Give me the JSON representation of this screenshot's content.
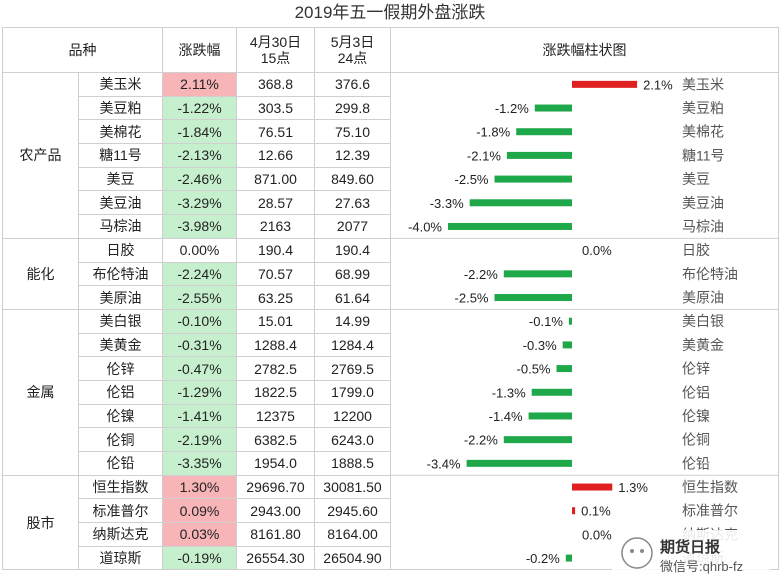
{
  "title": "2019年五一假期外盘涨跌",
  "headers": {
    "product": "品种",
    "change": "涨跌幅",
    "p1_line1": "4月30日",
    "p1_line2": "15点",
    "p2_line1": "5月3日",
    "p2_line2": "24点",
    "chart": "涨跌幅柱状图"
  },
  "colors": {
    "up_bar": "#e02020",
    "down_bar": "#1fa84a",
    "up_cell": "#f7b5b8",
    "down_cell": "#c6efce"
  },
  "groups": [
    {
      "category": "农产品",
      "rows": [
        {
          "name": "美玉米",
          "change": "2.11%",
          "p1": "368.8",
          "p2": "376.6"
        },
        {
          "name": "美豆粕",
          "change": "-1.22%",
          "p1": "303.5",
          "p2": "299.8"
        },
        {
          "name": "美棉花",
          "change": "-1.84%",
          "p1": "76.51",
          "p2": "75.10"
        },
        {
          "name": "糖11号",
          "change": "-2.13%",
          "p1": "12.66",
          "p2": "12.39"
        },
        {
          "name": "美豆",
          "change": "-2.46%",
          "p1": "871.00",
          "p2": "849.60"
        },
        {
          "name": "美豆油",
          "change": "-3.29%",
          "p1": "28.57",
          "p2": "27.63"
        },
        {
          "name": "马棕油",
          "change": "-3.98%",
          "p1": "2163",
          "p2": "2077"
        }
      ]
    },
    {
      "category": "能化",
      "rows": [
        {
          "name": "日胶",
          "change": "0.00%",
          "p1": "190.4",
          "p2": "190.4"
        },
        {
          "name": "布伦特油",
          "change": "-2.24%",
          "p1": "70.57",
          "p2": "68.99"
        },
        {
          "name": "美原油",
          "change": "-2.55%",
          "p1": "63.25",
          "p2": "61.64"
        }
      ]
    },
    {
      "category": "金属",
      "rows": [
        {
          "name": "美白银",
          "change": "-0.10%",
          "p1": "15.01",
          "p2": "14.99"
        },
        {
          "name": "美黄金",
          "change": "-0.31%",
          "p1": "1288.4",
          "p2": "1284.4"
        },
        {
          "name": "伦锌",
          "change": "-0.47%",
          "p1": "2782.5",
          "p2": "2769.5"
        },
        {
          "name": "伦铝",
          "change": "-1.29%",
          "p1": "1822.5",
          "p2": "1799.0"
        },
        {
          "name": "伦镍",
          "change": "-1.41%",
          "p1": "12375",
          "p2": "12200"
        },
        {
          "name": "伦铜",
          "change": "-2.19%",
          "p1": "6382.5",
          "p2": "6243.0"
        },
        {
          "name": "伦铅",
          "change": "-3.35%",
          "p1": "1954.0",
          "p2": "1888.5"
        }
      ]
    },
    {
      "category": "股市",
      "rows": [
        {
          "name": "恒生指数",
          "change": "1.30%",
          "p1": "29696.70",
          "p2": "30081.50"
        },
        {
          "name": "标准普尔",
          "change": "0.09%",
          "p1": "2943.00",
          "p2": "2945.60"
        },
        {
          "name": "纳斯达克",
          "change": "0.03%",
          "p1": "8161.80",
          "p2": "8164.00"
        },
        {
          "name": "道琼斯",
          "change": "-0.19%",
          "p1": "26554.30",
          "p2": "26504.90"
        }
      ]
    }
  ],
  "chart_data": {
    "type": "bar",
    "orientation": "horizontal",
    "title": "涨跌幅柱状图",
    "categories": [
      "美玉米",
      "美豆粕",
      "美棉花",
      "糖11号",
      "美豆",
      "美豆油",
      "马棕油",
      "日胶",
      "布伦特油",
      "美原油",
      "美白银",
      "美黄金",
      "伦锌",
      "伦铝",
      "伦镍",
      "伦铜",
      "伦铅",
      "恒生指数",
      "标准普尔",
      "纳斯达克",
      "道琼斯"
    ],
    "values": [
      2.1,
      -1.2,
      -1.8,
      -2.1,
      -2.5,
      -3.3,
      -4.0,
      0.0,
      -2.2,
      -2.5,
      -0.1,
      -0.3,
      -0.5,
      -1.3,
      -1.4,
      -2.2,
      -3.4,
      1.3,
      0.1,
      0.0,
      -0.2
    ],
    "labels": [
      "2.1%",
      "-1.2%",
      "-1.8%",
      "-2.1%",
      "-2.5%",
      "-3.3%",
      "-4.0%",
      "0.0%",
      "-2.2%",
      "-2.5%",
      "-0.1%",
      "-0.3%",
      "-0.5%",
      "-1.3%",
      "-1.4%",
      "-2.2%",
      "-3.4%",
      "1.3%",
      "0.1%",
      "0.0%",
      "-0.2%"
    ],
    "unit": "%",
    "xlim": [
      -4.2,
      2.8
    ]
  },
  "watermark": {
    "line1": "期货日报",
    "line2": "微信号:qhrb-fz"
  }
}
